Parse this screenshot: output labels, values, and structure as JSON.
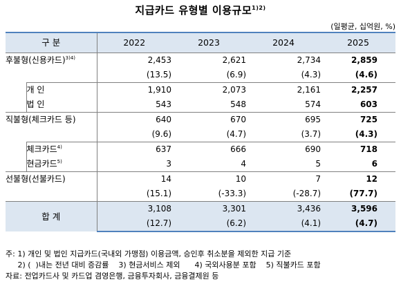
{
  "title": "지급카드 유형별 이용규모",
  "title_note": "1)2)",
  "unit": "(일평균, 십억원, %)",
  "header": {
    "label": "구  분",
    "years": [
      "2022",
      "2023",
      "2024",
      "2025"
    ]
  },
  "rows": {
    "postpaid": {
      "label": "후불형(신용카드)",
      "note": "3)4)",
      "values": [
        "2,453",
        "2,621",
        "2,734",
        "2,859"
      ],
      "growth": [
        "(13.5)",
        "(6.9)",
        "(4.3)",
        "(4.6)"
      ]
    },
    "individual": {
      "label": "개  인",
      "values": [
        "1,910",
        "2,073",
        "2,161",
        "2,257"
      ]
    },
    "corporate": {
      "label": "법  인",
      "values": [
        "543",
        "548",
        "574",
        "603"
      ]
    },
    "debit": {
      "label": "직불형(체크카드 등)",
      "values": [
        "640",
        "670",
        "695",
        "725"
      ],
      "growth": [
        "(9.6)",
        "(4.7)",
        "(3.7)",
        "(4.3)"
      ]
    },
    "checkcard": {
      "label": "체크카드",
      "note": "4)",
      "values": [
        "637",
        "666",
        "690",
        "718"
      ]
    },
    "cashcard": {
      "label": "현금카드",
      "note": "5)",
      "values": [
        "3",
        "4",
        "5",
        "6"
      ]
    },
    "prepaid": {
      "label": "선불형(선불카드)",
      "values": [
        "14",
        "10",
        "7",
        "12"
      ],
      "growth": [
        "(15.1)",
        "(-33.3)",
        "(-28.7)",
        "(77.7)"
      ]
    },
    "total": {
      "label": "합    계",
      "values": [
        "3,108",
        "3,301",
        "3,436",
        "3,596"
      ],
      "growth": [
        "(12.7)",
        "(6.2)",
        "(4.1)",
        "(4.7)"
      ]
    }
  },
  "notes": [
    "주: 1) 개인 및 법인 지급카드(국내외 가맹점) 이용금액, 승인후 취소분을 제외한 지급 기준",
    "     2) (  )내는 전년 대비 증감률    3) 현금서비스 제외      4) 국외사용분 포함    5) 직불카드 포함",
    "자료: 전업카드사 및 카드업 겸영은행, 금융투자회사, 금융결제원 등"
  ]
}
